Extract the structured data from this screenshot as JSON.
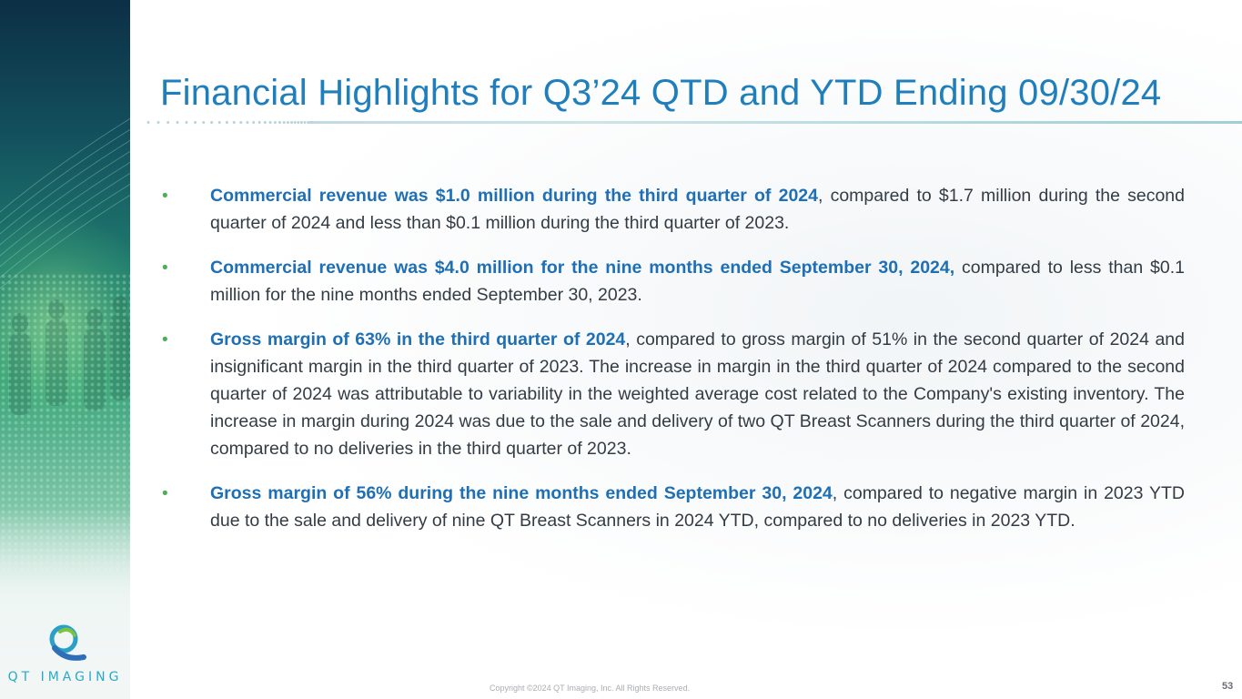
{
  "title": "Financial Highlights for Q3’24 QTD and YTD Ending 09/30/24",
  "bullets": [
    {
      "highlight": "Commercial revenue was $1.0 million during the third quarter of 2024",
      "rest": ", compared to $1.7 million during the second quarter of 2024 and less than $0.1 million during the third quarter of 2023."
    },
    {
      "highlight": "Commercial revenue was $4.0 million for the nine months ended September 30, 2024,",
      "rest": " compared to less than $0.1 million for the nine months ended September 30, 2023."
    },
    {
      "highlight": "Gross margin of 63% in the third quarter of 2024",
      "rest": ", compared to gross margin of 51% in the second quarter of 2024 and insignificant margin in the third quarter of 2023. The increase in margin in the third quarter of 2024 compared to the second quarter of 2024 was attributable to variability in the weighted average cost related to the Company's existing inventory. The increase in margin during 2024 was due to the sale and delivery of two QT Breast Scanners during the third quarter of 2024, compared to no deliveries in the third quarter of 2023."
    },
    {
      "highlight": "Gross margin of 56% during the nine months ended September 30, 2024",
      "rest": ", compared to negative margin in 2023 YTD due to the sale and delivery of nine QT Breast Scanners in 2024 YTD, compared to no deliveries in 2023 YTD."
    }
  ],
  "bullet_symbol": "•",
  "logo": {
    "text": "QT IMAGING",
    "icon": "qt-swirl-logo-icon"
  },
  "footer": {
    "copyright": "Copyright ©2024 QT Imaging, Inc. All Rights Reserved.",
    "page_number": "53"
  },
  "colors": {
    "title": "#1f7fbd",
    "highlight": "#1f6fb5",
    "bullet": "#4caf50",
    "body_text": "#333c45"
  }
}
